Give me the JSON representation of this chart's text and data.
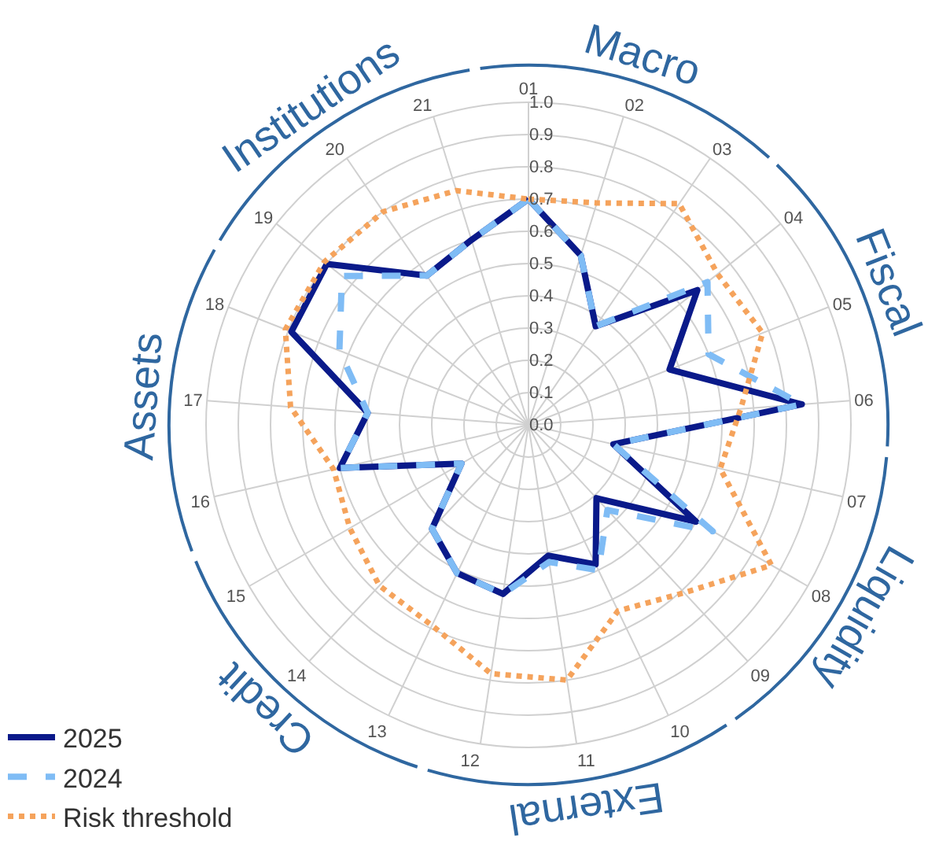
{
  "chart_data": {
    "type": "radar",
    "categories": [
      "01",
      "02",
      "03",
      "04",
      "05",
      "06",
      "07",
      "08",
      "09",
      "10",
      "11",
      "12",
      "13",
      "14",
      "15",
      "16",
      "17",
      "18",
      "19",
      "20",
      "21"
    ],
    "series": [
      {
        "name": "2025",
        "color": "#0a1a8a",
        "line_style": "solid",
        "values": [
          0.7,
          0.55,
          0.37,
          0.67,
          0.47,
          0.85,
          0.27,
          0.6,
          0.31,
          0.48,
          0.41,
          0.53,
          0.51,
          0.44,
          0.24,
          0.6,
          0.5,
          0.79,
          0.8,
          0.56,
          0.6
        ]
      },
      {
        "name": "2024",
        "color": "#7fbcf5",
        "line_style": "dashed",
        "values": [
          0.7,
          0.55,
          0.37,
          0.71,
          0.6,
          0.85,
          0.27,
          0.66,
          0.36,
          0.5,
          0.43,
          0.53,
          0.51,
          0.44,
          0.24,
          0.6,
          0.5,
          0.63,
          0.74,
          0.56,
          0.6
        ]
      },
      {
        "name": "Risk threshold",
        "color": "#f5a35c",
        "line_style": "dotted",
        "values": [
          0.7,
          0.72,
          0.83,
          0.75,
          0.78,
          0.66,
          0.61,
          0.87,
          0.71,
          0.64,
          0.8,
          0.78,
          0.69,
          0.68,
          0.64,
          0.62,
          0.74,
          0.81,
          0.81,
          0.8,
          0.76
        ]
      }
    ],
    "annotations": [
      "Macro",
      "Fiscal",
      "Liquidity",
      "External",
      "Credit",
      "Assets",
      "Institutions"
    ],
    "ylim": [
      0,
      1
    ],
    "yticks": [
      {
        "value": 0,
        "label": "0.0"
      },
      {
        "value": 0.1,
        "label": "0.1"
      },
      {
        "value": 0.2,
        "label": "0.2"
      },
      {
        "value": 0.3,
        "label": "0.3"
      },
      {
        "value": 0.4,
        "label": "0.4"
      },
      {
        "value": 0.5,
        "label": "0.5"
      },
      {
        "value": 0.6,
        "label": "0.6"
      },
      {
        "value": 0.7,
        "label": "0.7"
      },
      {
        "value": 0.8,
        "label": "0.8"
      },
      {
        "value": 0.9,
        "label": "0.9"
      },
      {
        "value": 1,
        "label": "1.0"
      }
    ],
    "grid": true,
    "legend": "bottom left",
    "marker": "none"
  }
}
